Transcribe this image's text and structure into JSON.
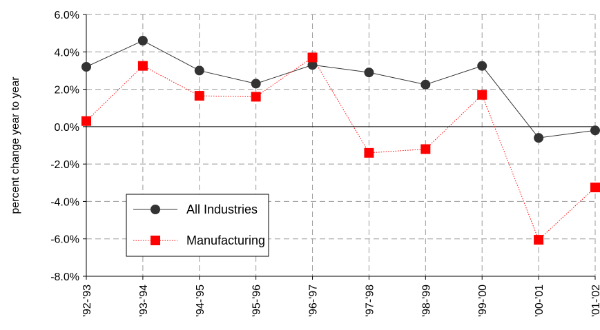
{
  "chart_data": {
    "type": "line",
    "categories": [
      "'92-'93",
      "'93-'94",
      "'94-'95",
      "'95-'96",
      "'96-'97",
      "'97-'98",
      "'98-'99",
      "'99-'00",
      "'00-'01",
      "'01-'02"
    ],
    "series": [
      {
        "name": "All Industries",
        "values": [
          3.2,
          4.6,
          3.0,
          2.3,
          3.3,
          2.9,
          2.25,
          3.25,
          -0.6,
          -0.2
        ],
        "color": "#333333",
        "marker": "circle",
        "line_style": "solid"
      },
      {
        "name": "Manufacturing",
        "values": [
          0.3,
          3.25,
          1.65,
          1.6,
          3.7,
          -1.4,
          -1.2,
          1.7,
          -6.05,
          -3.25
        ],
        "color": "#ff0000",
        "marker": "square",
        "line_style": "dotted"
      }
    ],
    "ylabel": "percent change year to year",
    "ylim": [
      -8,
      6
    ],
    "yticks": [
      -8,
      -6,
      -4,
      -2,
      0,
      2,
      4,
      6
    ],
    "ytick_labels": [
      "-8.0%",
      "-6.0%",
      "-4.0%",
      "-2.0%",
      "0.0%",
      "2.0%",
      "4.0%",
      "6.0%"
    ],
    "grid": true,
    "legend_position": "lower-left"
  }
}
